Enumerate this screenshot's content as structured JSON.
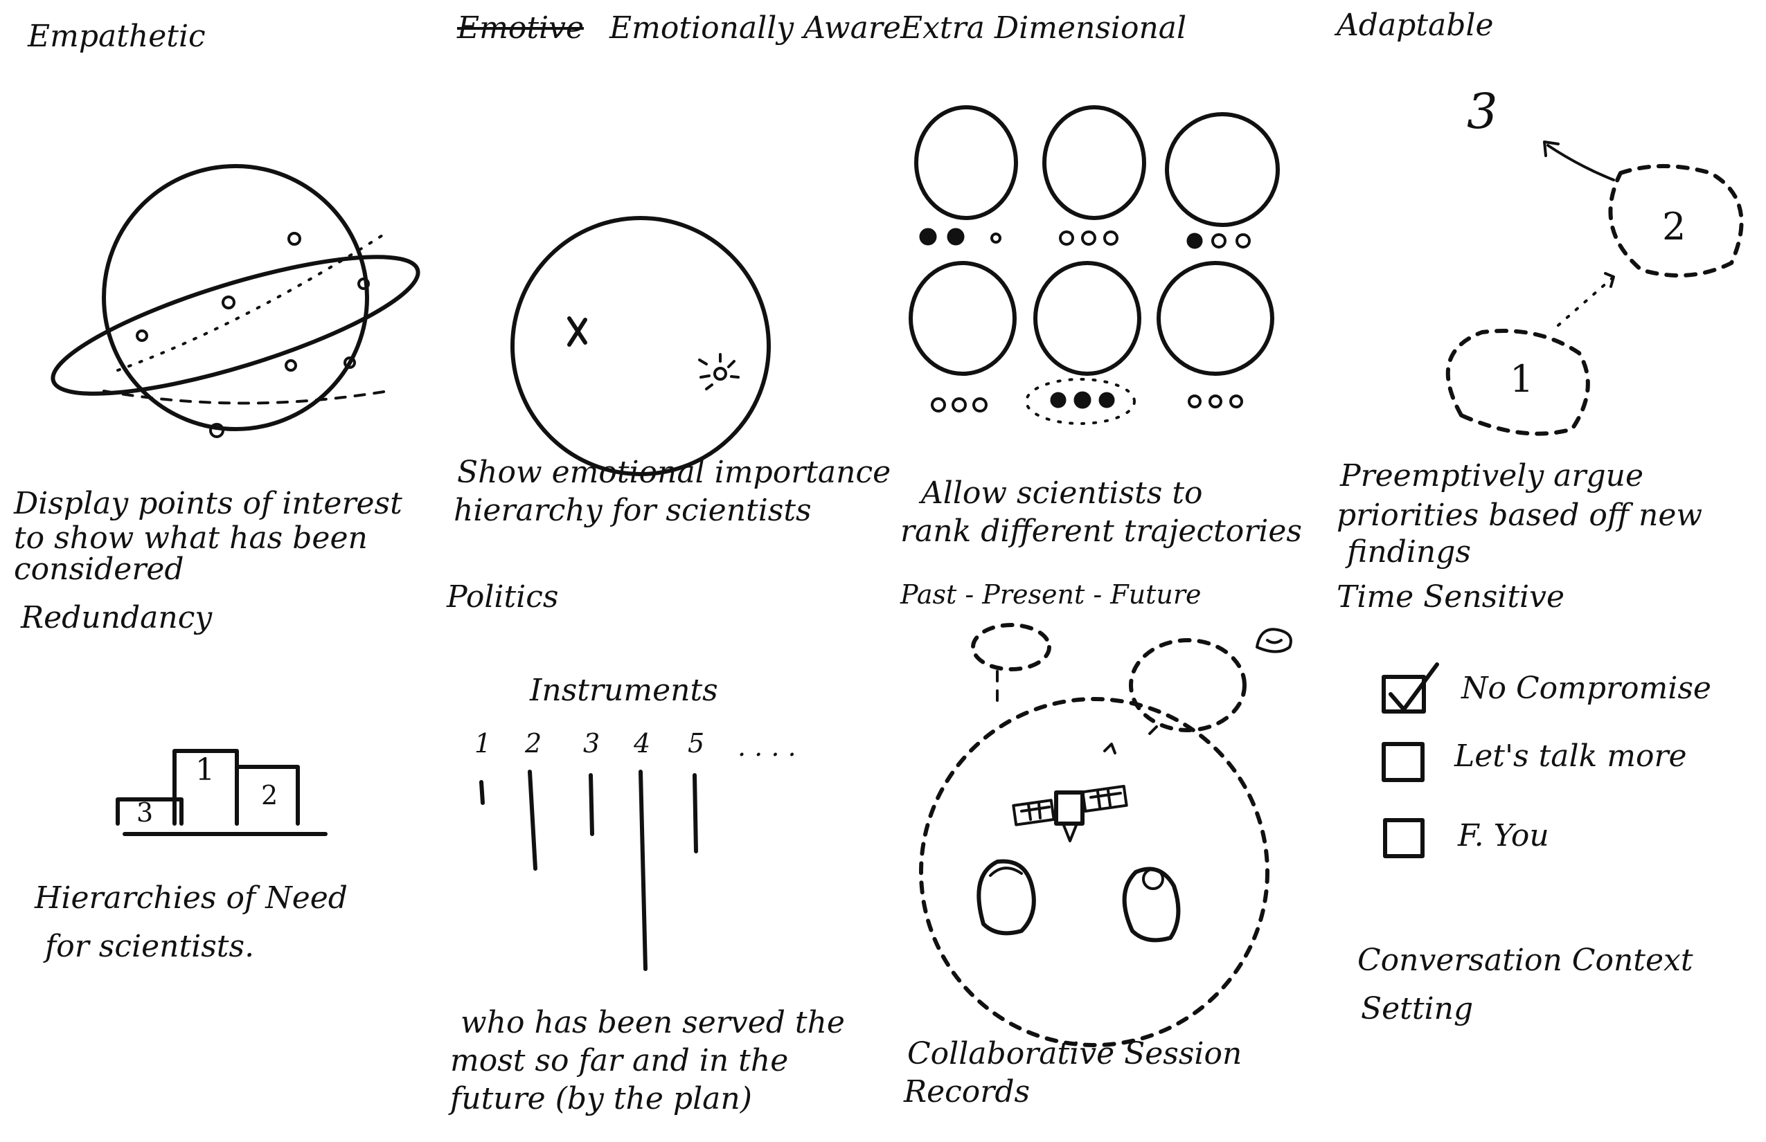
{
  "titles": {
    "empathetic": "Empathetic",
    "emotive_struck": "Emotive",
    "emotionally_aware": "Emotionally Aware",
    "extra_dimensional": "Extra Dimensional",
    "adaptable": "Adaptable"
  },
  "captions": {
    "empathetic": [
      "Display points of interest",
      "to show what has been",
      "considered"
    ],
    "emotionally_aware": [
      "Show emotional importance",
      "hierarchy for scientists"
    ],
    "extra_dimensional": [
      "Allow scientists to",
      "rank different trajectories"
    ],
    "adaptable": [
      "Preemptively argue",
      "priorities based off new",
      "findings"
    ]
  },
  "adaptable_labels": {
    "n1": "1",
    "n2": "2",
    "n3": "3"
  },
  "sections": {
    "redundancy": "Redundancy",
    "politics": "Politics",
    "past_present_future": "Past - Present - Future",
    "time_sensitive": "Time Sensitive"
  },
  "podium": {
    "first": "1",
    "second": "2",
    "third": "3"
  },
  "redundancy_caption": [
    "Hierarchies of Need",
    "for scientists."
  ],
  "instruments": {
    "label": "Instruments",
    "numbers": [
      "1",
      "2",
      "3",
      "4",
      "5",
      ". . . ."
    ]
  },
  "politics_caption": [
    "who has been served the",
    "most so far and in the",
    "future (by the plan)"
  ],
  "ppf_caption": [
    "Collaborative Session",
    "Records"
  ],
  "time_sensitive_options": [
    {
      "label": "No Compromise",
      "checked": true
    },
    {
      "label": "Let's talk more",
      "checked": false
    },
    {
      "label": "F. You",
      "checked": false
    }
  ],
  "time_sensitive_caption": [
    "Conversation Context",
    "Setting"
  ]
}
